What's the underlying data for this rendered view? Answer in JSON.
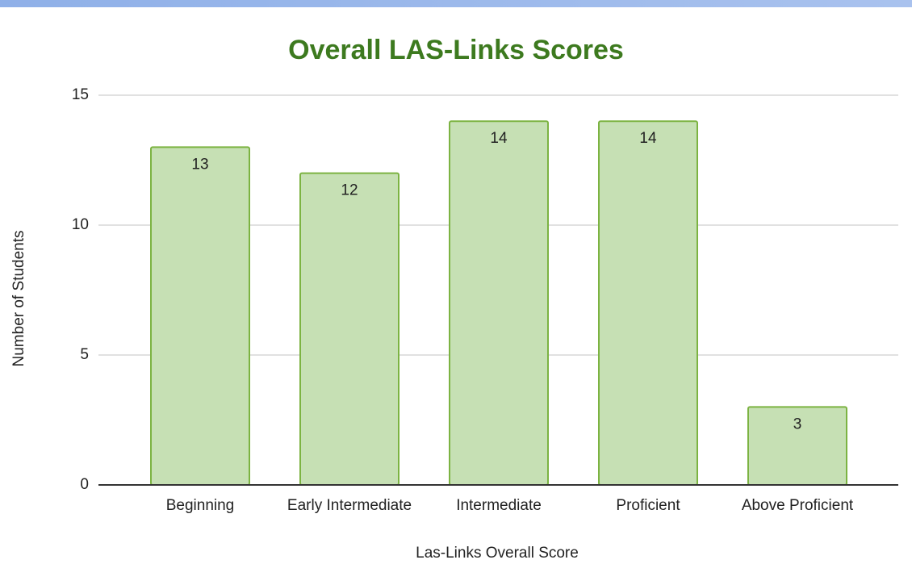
{
  "chart_data": {
    "type": "bar",
    "title": "Overall LAS-Links Scores",
    "x_label": "Las-Links Overall Score",
    "y_label": "Number of Students",
    "categories": [
      "Beginning",
      "Early Intermediate",
      "Intermediate",
      "Proficient",
      "Above Proficient"
    ],
    "values": [
      13,
      12,
      14,
      14,
      3
    ],
    "color": "#c6e0b4",
    "edge_color": "#7cb342",
    "ylim": [
      0,
      15
    ],
    "yticks": [
      0,
      5,
      10,
      15
    ],
    "grid": true
  }
}
